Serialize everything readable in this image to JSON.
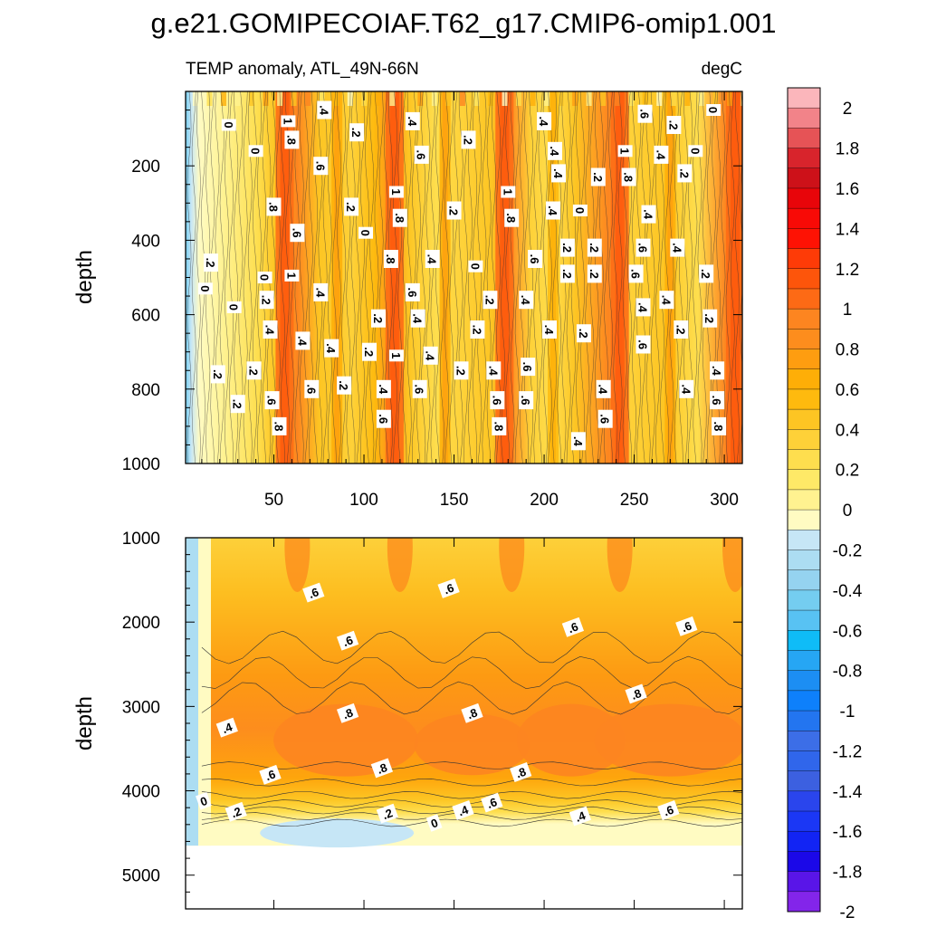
{
  "chart_data": [
    {
      "type": "heatmap",
      "title": "g.e21.GOMIPECOIAF.T62_g17.CMIP6-omip1.001",
      "subtitle_left": "TEMP anomaly, ATL_49N-66N",
      "subtitle_right": "degC",
      "ylabel": "depth",
      "xlabel": "",
      "xlim": [
        1,
        310
      ],
      "ylim": [
        1000,
        0
      ],
      "x_ticks": [
        50,
        100,
        150,
        200,
        250,
        300
      ],
      "y_ticks": [
        200,
        400,
        600,
        800,
        1000
      ],
      "x_tick_labels": [
        "50",
        "100",
        "150",
        "200",
        "250",
        "300"
      ],
      "y_tick_labels": [
        "200",
        "400",
        "600",
        "800",
        "1000"
      ],
      "warm_columns": [
        {
          "x": 56,
          "value": 1.0
        },
        {
          "x": 117,
          "value": 1.0
        },
        {
          "x": 178,
          "value": 1.0
        },
        {
          "x": 242,
          "value": 1.0
        },
        {
          "x": 306,
          "value": 1.0
        },
        {
          "x": 85,
          "value": 0.6
        },
        {
          "x": 145,
          "value": 0.6
        },
        {
          "x": 205,
          "value": 0.5
        },
        {
          "x": 270,
          "value": 0.6
        }
      ],
      "contour_labels": [
        {
          "x": 25,
          "y": 90,
          "text": "0"
        },
        {
          "x": 58,
          "y": 80,
          "text": "1"
        },
        {
          "x": 60,
          "y": 130,
          "text": ".8"
        },
        {
          "x": 78,
          "y": 50,
          "text": ".4"
        },
        {
          "x": 96,
          "y": 110,
          "text": ".2"
        },
        {
          "x": 127,
          "y": 80,
          "text": ".4"
        },
        {
          "x": 158,
          "y": 130,
          "text": ".2"
        },
        {
          "x": 200,
          "y": 80,
          "text": ".4"
        },
        {
          "x": 256,
          "y": 60,
          "text": ".6"
        },
        {
          "x": 272,
          "y": 90,
          "text": ".2"
        },
        {
          "x": 294,
          "y": 50,
          "text": "0"
        },
        {
          "x": 40,
          "y": 160,
          "text": "0"
        },
        {
          "x": 76,
          "y": 200,
          "text": ".6"
        },
        {
          "x": 132,
          "y": 170,
          "text": ".6"
        },
        {
          "x": 206,
          "y": 160,
          "text": ".4"
        },
        {
          "x": 245,
          "y": 160,
          "text": "1"
        },
        {
          "x": 265,
          "y": 170,
          "text": ".4"
        },
        {
          "x": 284,
          "y": 160,
          "text": "0"
        },
        {
          "x": 118,
          "y": 270,
          "text": "1"
        },
        {
          "x": 180,
          "y": 270,
          "text": "1"
        },
        {
          "x": 50,
          "y": 310,
          "text": ".8"
        },
        {
          "x": 93,
          "y": 310,
          "text": ".2"
        },
        {
          "x": 150,
          "y": 320,
          "text": ".2"
        },
        {
          "x": 208,
          "y": 220,
          "text": ".4"
        },
        {
          "x": 230,
          "y": 230,
          "text": ".2"
        },
        {
          "x": 247,
          "y": 230,
          "text": ".8"
        },
        {
          "x": 278,
          "y": 220,
          "text": ".2"
        },
        {
          "x": 120,
          "y": 340,
          "text": ".8"
        },
        {
          "x": 182,
          "y": 340,
          "text": ".8"
        },
        {
          "x": 205,
          "y": 320,
          "text": ".4"
        },
        {
          "x": 220,
          "y": 320,
          "text": "0"
        },
        {
          "x": 258,
          "y": 330,
          "text": ".4"
        },
        {
          "x": 15,
          "y": 460,
          "text": ".2"
        },
        {
          "x": 63,
          "y": 380,
          "text": ".6"
        },
        {
          "x": 101,
          "y": 380,
          "text": "0"
        },
        {
          "x": 115,
          "y": 450,
          "text": ".8"
        },
        {
          "x": 138,
          "y": 450,
          "text": ".4"
        },
        {
          "x": 162,
          "y": 470,
          "text": "0"
        },
        {
          "x": 195,
          "y": 450,
          "text": ".6"
        },
        {
          "x": 213,
          "y": 420,
          "text": ".2"
        },
        {
          "x": 228,
          "y": 420,
          "text": ".2"
        },
        {
          "x": 255,
          "y": 420,
          "text": ".6"
        },
        {
          "x": 274,
          "y": 420,
          "text": ".4"
        },
        {
          "x": 45,
          "y": 500,
          "text": "0"
        },
        {
          "x": 60,
          "y": 495,
          "text": "1"
        },
        {
          "x": 213,
          "y": 490,
          "text": ".2"
        },
        {
          "x": 228,
          "y": 490,
          "text": ".2"
        },
        {
          "x": 251,
          "y": 490,
          "text": ".6"
        },
        {
          "x": 290,
          "y": 490,
          "text": ".2"
        },
        {
          "x": 12,
          "y": 530,
          "text": "0"
        },
        {
          "x": 76,
          "y": 540,
          "text": ".4"
        },
        {
          "x": 127,
          "y": 540,
          "text": ".6"
        },
        {
          "x": 170,
          "y": 560,
          "text": ".2"
        },
        {
          "x": 190,
          "y": 560,
          "text": ".4"
        },
        {
          "x": 268,
          "y": 560,
          "text": ".4"
        },
        {
          "x": 28,
          "y": 580,
          "text": "0"
        },
        {
          "x": 46,
          "y": 560,
          "text": ".2"
        },
        {
          "x": 108,
          "y": 610,
          "text": ".2"
        },
        {
          "x": 130,
          "y": 610,
          "text": ".4"
        },
        {
          "x": 255,
          "y": 580,
          "text": ".4"
        },
        {
          "x": 292,
          "y": 610,
          "text": ".2"
        },
        {
          "x": 48,
          "y": 640,
          "text": ".4"
        },
        {
          "x": 66,
          "y": 670,
          "text": ".4"
        },
        {
          "x": 163,
          "y": 640,
          "text": ".2"
        },
        {
          "x": 203,
          "y": 640,
          "text": ".4"
        },
        {
          "x": 222,
          "y": 650,
          "text": ".2"
        },
        {
          "x": 276,
          "y": 640,
          "text": ".2"
        },
        {
          "x": 82,
          "y": 690,
          "text": ".4"
        },
        {
          "x": 103,
          "y": 700,
          "text": ".2"
        },
        {
          "x": 118,
          "y": 710,
          "text": "1"
        },
        {
          "x": 137,
          "y": 710,
          "text": ".4"
        },
        {
          "x": 255,
          "y": 680,
          "text": ".6"
        },
        {
          "x": 19,
          "y": 760,
          "text": ".2"
        },
        {
          "x": 39,
          "y": 750,
          "text": ".2"
        },
        {
          "x": 154,
          "y": 750,
          "text": ".2"
        },
        {
          "x": 172,
          "y": 750,
          "text": ".4"
        },
        {
          "x": 191,
          "y": 740,
          "text": ".6"
        },
        {
          "x": 296,
          "y": 750,
          "text": ".4"
        },
        {
          "x": 71,
          "y": 800,
          "text": ".6"
        },
        {
          "x": 89,
          "y": 790,
          "text": ".2"
        },
        {
          "x": 111,
          "y": 800,
          "text": ".4"
        },
        {
          "x": 131,
          "y": 800,
          "text": ".6"
        },
        {
          "x": 233,
          "y": 800,
          "text": ".4"
        },
        {
          "x": 279,
          "y": 800,
          "text": ".4"
        },
        {
          "x": 30,
          "y": 840,
          "text": ".2"
        },
        {
          "x": 49,
          "y": 830,
          "text": ".6"
        },
        {
          "x": 174,
          "y": 830,
          "text": ".6"
        },
        {
          "x": 190,
          "y": 830,
          "text": ".6"
        },
        {
          "x": 296,
          "y": 830,
          "text": ".6"
        },
        {
          "x": 111,
          "y": 880,
          "text": ".6"
        },
        {
          "x": 234,
          "y": 880,
          "text": ".6"
        },
        {
          "x": 53,
          "y": 900,
          "text": ".8"
        },
        {
          "x": 175,
          "y": 900,
          "text": ".8"
        },
        {
          "x": 297,
          "y": 900,
          "text": ".8"
        },
        {
          "x": 219,
          "y": 940,
          "text": ".4"
        }
      ]
    },
    {
      "type": "heatmap",
      "ylabel": "depth",
      "xlabel": "",
      "xlim": [
        1,
        310
      ],
      "ylim": [
        5400,
        1000
      ],
      "y_ticks": [
        1000,
        2000,
        3000,
        4000,
        5000
      ],
      "y_tick_labels": [
        "1000",
        "2000",
        "3000",
        "4000",
        "5000"
      ],
      "bottom_depth": 4650,
      "contour_labels": [
        {
          "x": 72,
          "y": 1650,
          "text": ".6"
        },
        {
          "x": 147,
          "y": 1600,
          "text": ".6"
        },
        {
          "x": 91,
          "y": 2220,
          "text": ".6"
        },
        {
          "x": 216,
          "y": 2060,
          "text": ".6"
        },
        {
          "x": 279,
          "y": 2050,
          "text": ".6"
        },
        {
          "x": 251,
          "y": 2850,
          "text": ".8"
        },
        {
          "x": 91,
          "y": 3080,
          "text": ".8"
        },
        {
          "x": 160,
          "y": 3080,
          "text": ".8"
        },
        {
          "x": 24,
          "y": 3250,
          "text": ".4"
        },
        {
          "x": 110,
          "y": 3730,
          "text": ".8"
        },
        {
          "x": 187,
          "y": 3780,
          "text": ".8"
        },
        {
          "x": 48,
          "y": 3810,
          "text": ".6"
        },
        {
          "x": 11,
          "y": 4120,
          "text": "0"
        },
        {
          "x": 29,
          "y": 4250,
          "text": ".2"
        },
        {
          "x": 113,
          "y": 4270,
          "text": ".2"
        },
        {
          "x": 139,
          "y": 4380,
          "text": "0"
        },
        {
          "x": 155,
          "y": 4230,
          "text": ".4"
        },
        {
          "x": 171,
          "y": 4140,
          "text": ".6"
        },
        {
          "x": 220,
          "y": 4300,
          "text": ".4"
        },
        {
          "x": 269,
          "y": 4230,
          "text": ".6"
        }
      ]
    }
  ],
  "colorbar": {
    "labels": [
      "2",
      "1.8",
      "1.6",
      "1.4",
      "1.2",
      "1",
      "0.8",
      "0.6",
      "0.4",
      "0.2",
      "0",
      "-0.2",
      "-0.4",
      "-0.6",
      "-0.8",
      "-1",
      "-1.2",
      "-1.4",
      "-1.6",
      "-1.8",
      "-2"
    ],
    "colors": [
      "#fbb6bb",
      "#f28389",
      "#e65356",
      "#d8242c",
      "#cd1119",
      "#e8050a",
      "#f80a06",
      "#fe1204",
      "#fe3b07",
      "#fd550b",
      "#fd6a15",
      "#fd8520",
      "#fd8d1d",
      "#fe9d10",
      "#feae07",
      "#feba0e",
      "#fdc523",
      "#fed138",
      "#fede4e",
      "#fee967",
      "#fff290",
      "#fffbc2",
      "#c6e6f6",
      "#acddf2",
      "#95d3f0",
      "#74cdf0",
      "#58c2f3",
      "#0fbcf7",
      "#26a6f4",
      "#1c8ef3",
      "#0e80fb",
      "#2375f0",
      "#3c6ee7",
      "#3066eb",
      "#3c60e0",
      "#2a45ed",
      "#1b37f5",
      "#1224f4",
      "#1b08e8",
      "#5915e8",
      "#8325ea"
    ]
  }
}
